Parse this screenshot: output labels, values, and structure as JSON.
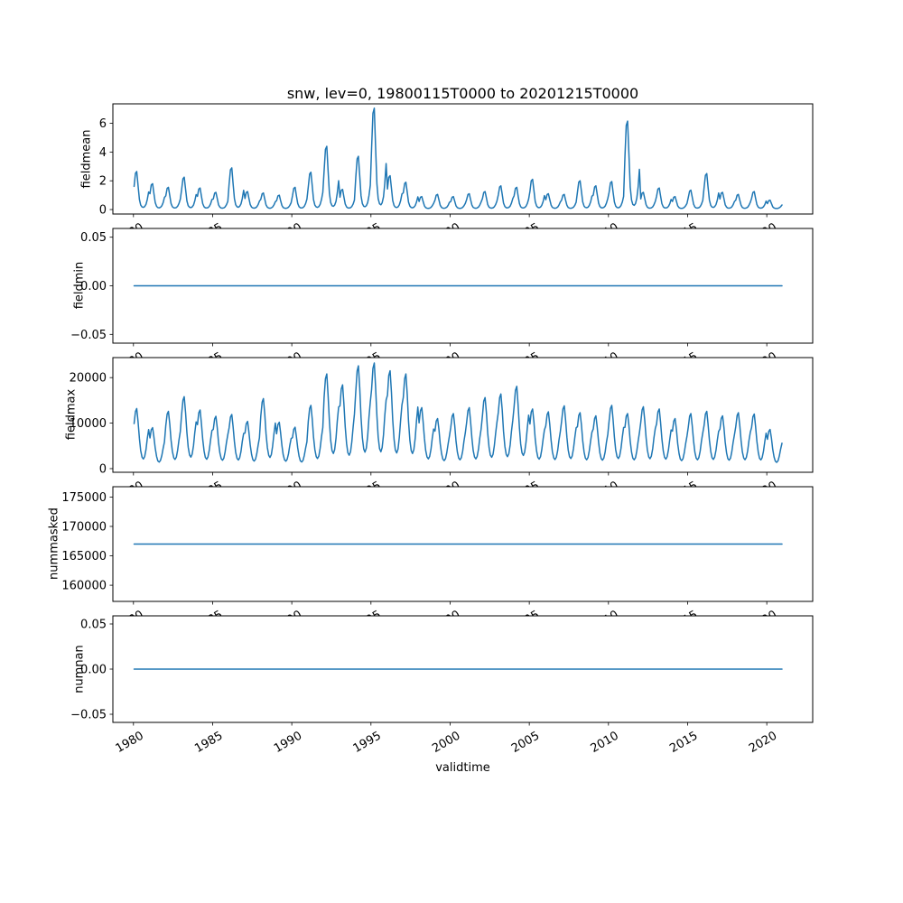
{
  "figure": {
    "title": "snw, lev=0, 19800115T0000 to 20201215T0000",
    "xlabel": "validtime",
    "background": "#ffffff",
    "line_color": "#1f77b4",
    "axes_edge_color": "#000000"
  },
  "x_axis": {
    "label": "validtime",
    "xlim": [
      1978.7,
      2022.9
    ],
    "ticks": [
      1980,
      1985,
      1990,
      1995,
      2000,
      2005,
      2010,
      2015,
      2020
    ],
    "ticklabels": [
      "1980",
      "1985",
      "1990",
      "1995",
      "2000",
      "2005",
      "2010",
      "2015",
      "2020"
    ],
    "tick_rotation_deg": 30,
    "data_start": "19800115T0000",
    "data_end": "20201215T0000"
  },
  "chart_data": [
    {
      "type": "line",
      "title": "snw, lev=0, 19800115T0000 to 20201215T0000",
      "ylabel": "fieldmean",
      "yticks": [
        0,
        2,
        4,
        6
      ],
      "yticklabels": [
        "0",
        "2",
        "4",
        "6"
      ],
      "ylim": [
        -0.31,
        7.35
      ],
      "grid": false,
      "legend": "none",
      "series_kind": "seasonal_monthly",
      "x_start_year": 1980,
      "baseline": 0.05,
      "monthly_profile": [
        0.6,
        0.95,
        1.0,
        0.62,
        0.25,
        0.1,
        0.05,
        0.04,
        0.06,
        0.12,
        0.25,
        0.45
      ],
      "annual_peaks": [
        2.6,
        1.75,
        1.5,
        2.2,
        1.45,
        1.15,
        2.85,
        1.2,
        1.1,
        0.95,
        1.5,
        2.55,
        4.35,
        1.35,
        3.65,
        7.0,
        2.3,
        1.85,
        0.85,
        1.0,
        0.85,
        1.05,
        1.2,
        1.6,
        1.5,
        2.05,
        1.05,
        1.0,
        1.95,
        1.6,
        1.9,
        6.1,
        1.15,
        1.45,
        0.85,
        1.3,
        2.45,
        1.15,
        1.0,
        1.2,
        0.6
      ]
    },
    {
      "type": "line",
      "ylabel": "fieldmin",
      "yticks": [
        -0.05,
        0.0,
        0.05
      ],
      "yticklabels": [
        "−0.05",
        "0.00",
        "0.05"
      ],
      "ylim": [
        -0.059,
        0.059
      ],
      "grid": false,
      "legend": "none",
      "series_kind": "constant",
      "constant_value": 0.0,
      "x_range": [
        1980.04,
        2020.96
      ]
    },
    {
      "type": "line",
      "ylabel": "fieldmax",
      "yticks": [
        0,
        10000,
        20000
      ],
      "yticklabels": [
        "0",
        "10000",
        "20000"
      ],
      "ylim": [
        -800,
        24400
      ],
      "grid": false,
      "legend": "none",
      "series_kind": "seasonal_monthly",
      "x_start_year": 1980,
      "baseline": 0,
      "monthly_profile": [
        0.75,
        0.95,
        1.0,
        0.78,
        0.5,
        0.3,
        0.19,
        0.16,
        0.2,
        0.32,
        0.5,
        0.65
      ],
      "annual_peaks": [
        13200,
        9000,
        12600,
        15800,
        12900,
        11500,
        11900,
        10400,
        15400,
        10200,
        9100,
        13900,
        20800,
        18400,
        22600,
        23200,
        21500,
        20800,
        13400,
        11000,
        12100,
        13400,
        15600,
        16400,
        18100,
        13100,
        12500,
        13800,
        12300,
        11600,
        13900,
        12100,
        13600,
        13100,
        11000,
        12100,
        12600,
        11600,
        12300,
        12000,
        8600
      ]
    },
    {
      "type": "line",
      "ylabel": "nummasked",
      "yticks": [
        160000,
        165000,
        170000,
        175000
      ],
      "yticklabels": [
        "160000",
        "165000",
        "170000",
        "175000"
      ],
      "ylim": [
        157250,
        176750
      ],
      "grid": false,
      "legend": "none",
      "series_kind": "constant",
      "constant_value": 167000,
      "x_range": [
        1980.04,
        2020.96
      ]
    },
    {
      "type": "line",
      "ylabel": "numnan",
      "xlabel": "validtime",
      "yticks": [
        -0.05,
        0.0,
        0.05
      ],
      "yticklabels": [
        "−0.05",
        "0.00",
        "0.05"
      ],
      "ylim": [
        -0.059,
        0.059
      ],
      "grid": false,
      "legend": "none",
      "series_kind": "constant",
      "constant_value": 0.0,
      "x_range": [
        1980.04,
        2020.96
      ]
    }
  ]
}
